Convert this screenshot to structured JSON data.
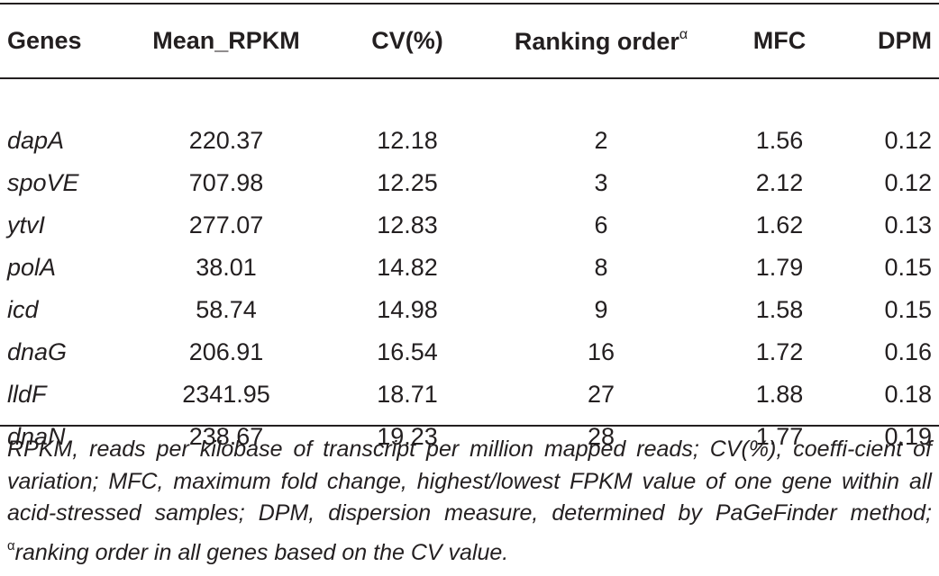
{
  "table": {
    "headers": {
      "genes": "Genes",
      "mean_rpkm": "Mean_RPKM",
      "cv": "CV(%)",
      "ranking": "Ranking order",
      "ranking_sup": "α",
      "mfc": "MFC",
      "dpm": "DPM"
    },
    "rows": [
      {
        "gene": "dapA",
        "mean_rpkm": "220.37",
        "cv": "12.18",
        "rank": "2",
        "mfc": "1.56",
        "dpm": "0.12"
      },
      {
        "gene": "spoVE",
        "mean_rpkm": "707.98",
        "cv": "12.25",
        "rank": "3",
        "mfc": "2.12",
        "dpm": "0.12"
      },
      {
        "gene": "ytvI",
        "mean_rpkm": "277.07",
        "cv": "12.83",
        "rank": "6",
        "mfc": "1.62",
        "dpm": "0.13"
      },
      {
        "gene": "polA",
        "mean_rpkm": "38.01",
        "cv": "14.82",
        "rank": "8",
        "mfc": "1.79",
        "dpm": "0.15"
      },
      {
        "gene": "icd",
        "mean_rpkm": "58.74",
        "cv": "14.98",
        "rank": "9",
        "mfc": "1.58",
        "dpm": "0.15"
      },
      {
        "gene": "dnaG",
        "mean_rpkm": "206.91",
        "cv": "16.54",
        "rank": "16",
        "mfc": "1.72",
        "dpm": "0.16"
      },
      {
        "gene": "lldF",
        "mean_rpkm": "2341.95",
        "cv": "18.71",
        "rank": "27",
        "mfc": "1.88",
        "dpm": "0.18"
      },
      {
        "gene": "dnaN",
        "mean_rpkm": "238.67",
        "cv": "19.23",
        "rank": "28",
        "mfc": "1.77",
        "dpm": "0.19"
      }
    ]
  },
  "footnote": {
    "text_main": "RPKM, reads per kilobase of transcript per million mapped reads; CV(%), coeffi-cient of variation; MFC, maximum fold change, highest/lowest FPKM value of one gene within all acid-stressed samples; DPM, dispersion measure, determined by PaGeFinder method; ",
    "sup": "α",
    "text_end": "ranking order in all genes based on the CV value."
  }
}
